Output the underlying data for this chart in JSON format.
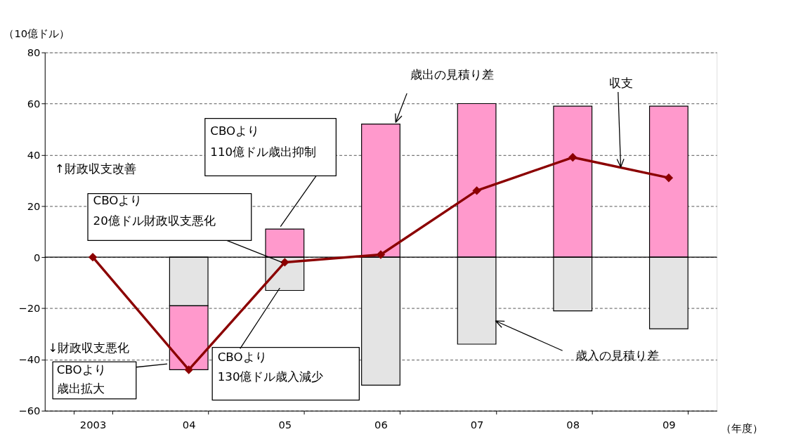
{
  "chart_data": {
    "type": "bar",
    "stacked": true,
    "xlabel": "（年度）",
    "ylabel": "（10億ドル）",
    "categories": [
      "2003",
      "04",
      "05",
      "06",
      "07",
      "08",
      "09"
    ],
    "series": [
      {
        "name": "歳入の見積り差",
        "color": "#e4e4e4",
        "values": [
          null,
          -19,
          -13,
          -50,
          -34,
          -21,
          -28
        ]
      },
      {
        "name": "歳出の見積り差",
        "color": "#ff99cc",
        "values": [
          null,
          -25,
          11,
          52,
          60,
          59,
          59
        ]
      },
      {
        "name": "収支",
        "type": "line",
        "color": "#8b0000",
        "marker": "diamond",
        "line_style": "solid",
        "values": [
          0,
          -44,
          -2,
          1,
          26,
          39,
          31
        ]
      }
    ],
    "ylim": [
      -60,
      80
    ],
    "yticks": [
      -60,
      -40,
      -20,
      0,
      20,
      40,
      60,
      80
    ],
    "grid": "y",
    "ref_lines": [
      {
        "axis": "y",
        "value": 0
      }
    ],
    "annotations": [
      "CBOより",
      "110億ドル歳出抑制",
      "CBOより",
      "20億ドル財政収支悪化",
      "CBOより",
      "歳出拡大",
      "CBOより",
      "130億ドル歳入減少",
      "↑財政収支改善",
      "↓財政収支悪化"
    ]
  }
}
